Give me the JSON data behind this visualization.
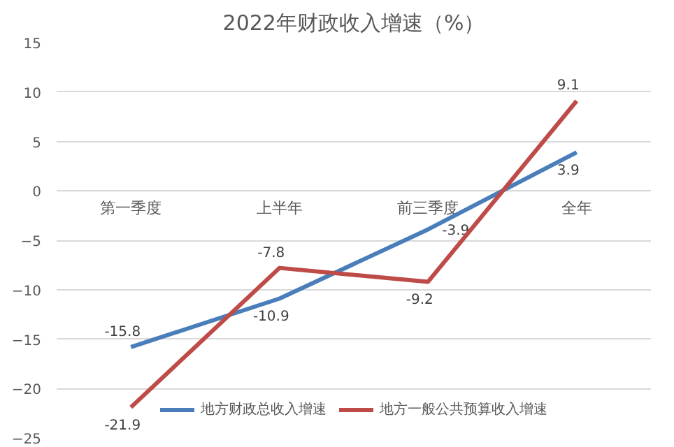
{
  "chart_data": {
    "type": "line",
    "title": "2022年财政收入增速（%）",
    "categories": [
      "第一季度",
      "上半年",
      "前三季度",
      "全年"
    ],
    "series": [
      {
        "name": "地方财政总收入增速",
        "color": "#4a7ebb",
        "values": [
          -15.8,
          -10.9,
          -3.9,
          3.9
        ]
      },
      {
        "name": "地方一般公共预算收入增速",
        "color": "#be4b48",
        "values": [
          -21.9,
          -7.8,
          -9.2,
          9.1
        ]
      }
    ],
    "ylim": [
      -25,
      15
    ],
    "yticks": [
      -25,
      -20,
      -15,
      -10,
      -5,
      0,
      5,
      10,
      15
    ],
    "grid": "y",
    "legend": "bottom",
    "data_labels": true,
    "marker": "none"
  }
}
